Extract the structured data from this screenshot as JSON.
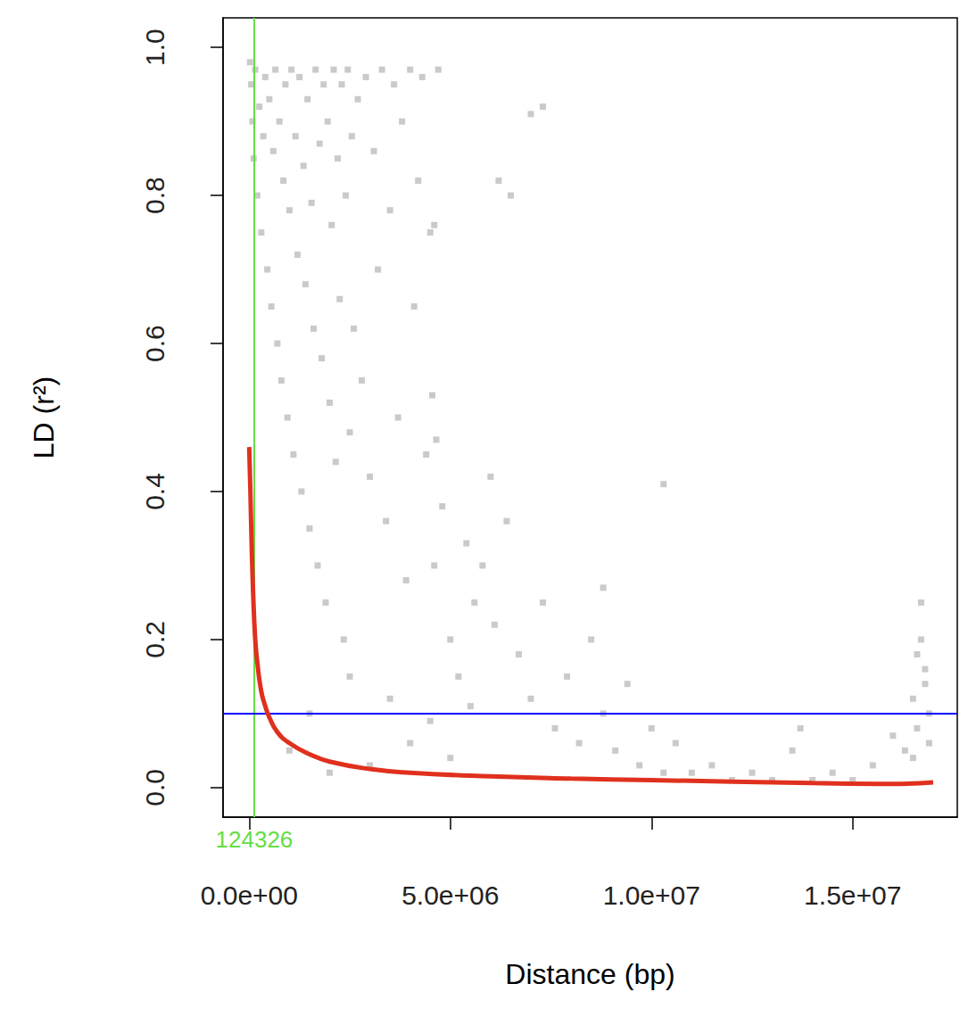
{
  "chart_data": {
    "type": "scatter",
    "x_label": "Distance (bp)",
    "y_label": "LD (r²)",
    "xlim": [
      -650000,
      17600000
    ],
    "ylim": [
      -0.04,
      1.04
    ],
    "xticks": [
      {
        "value": 0,
        "label": "0.0e+00"
      },
      {
        "value": 5000000,
        "label": "5.0e+06"
      },
      {
        "value": 10000000,
        "label": "1.0e+07"
      },
      {
        "value": 15000000,
        "label": "1.5e+07"
      }
    ],
    "yticks": [
      {
        "value": 0,
        "label": "0.0"
      },
      0.2,
      0.4,
      0.6,
      0.8,
      {
        "value": 1,
        "label": "1.0"
      }
    ],
    "grid": false,
    "series": [
      {
        "type": "scatter",
        "color": "#bdbdbd",
        "marker": "square",
        "x": [
          20000,
          50000,
          80000,
          110000,
          150000,
          200000,
          250000,
          300000,
          350000,
          400000,
          450000,
          500000,
          550000,
          600000,
          650000,
          700000,
          750000,
          800000,
          850000,
          900000,
          950000,
          1000000,
          1050000,
          1100000,
          1150000,
          1200000,
          1250000,
          1300000,
          1350000,
          1400000,
          1450000,
          1500000,
          1550000,
          1600000,
          1650000,
          1700000,
          1750000,
          1800000,
          1850000,
          1900000,
          1950000,
          2000000,
          2050000,
          2100000,
          2150000,
          2200000,
          2250000,
          2300000,
          2350000,
          2400000,
          2450000,
          2500000,
          2550000,
          2600000,
          2700000,
          2800000,
          2900000,
          3000000,
          3100000,
          3200000,
          3300000,
          3400000,
          3500000,
          3600000,
          3700000,
          3800000,
          3900000,
          4000000,
          4100000,
          4200000,
          4300000,
          4400000,
          4500000,
          4600000,
          4700000,
          4800000,
          5000000,
          5200000,
          5400000,
          5600000,
          6200000,
          6500000,
          7000000,
          7300000,
          4550000,
          4650000,
          4600000,
          10300000,
          8800000,
          6000000,
          5800000,
          6100000,
          6400000,
          6700000,
          7000000,
          7300000,
          7600000,
          7900000,
          8200000,
          8500000,
          8800000,
          9100000,
          9400000,
          9700000,
          10000000,
          10300000,
          10600000,
          11000000,
          11500000,
          12000000,
          1000000,
          1500000,
          2000000,
          2500000,
          3000000,
          3500000,
          4000000,
          4500000,
          5000000,
          5500000,
          12500000,
          13000000,
          13500000,
          13700000,
          14000000,
          14500000,
          15000000,
          15500000,
          16000000,
          16300000,
          16500000,
          16600000,
          16700000,
          16800000,
          16900000,
          16600000,
          16700000,
          16800000,
          16500000,
          16900000
        ],
        "values": [
          0.98,
          0.95,
          0.9,
          0.85,
          0.97,
          0.8,
          0.92,
          0.75,
          0.88,
          0.96,
          0.7,
          0.93,
          0.65,
          0.86,
          0.97,
          0.6,
          0.9,
          0.55,
          0.82,
          0.95,
          0.5,
          0.78,
          0.97,
          0.45,
          0.88,
          0.72,
          0.96,
          0.4,
          0.84,
          0.68,
          0.93,
          0.35,
          0.79,
          0.62,
          0.97,
          0.3,
          0.87,
          0.58,
          0.95,
          0.25,
          0.9,
          0.52,
          0.76,
          0.97,
          0.44,
          0.85,
          0.66,
          0.95,
          0.2,
          0.8,
          0.97,
          0.48,
          0.88,
          0.62,
          0.93,
          0.55,
          0.96,
          0.42,
          0.86,
          0.7,
          0.97,
          0.36,
          0.78,
          0.95,
          0.5,
          0.9,
          0.28,
          0.97,
          0.65,
          0.82,
          0.96,
          0.45,
          0.75,
          0.3,
          0.97,
          0.38,
          0.2,
          0.15,
          0.33,
          0.25,
          0.82,
          0.8,
          0.91,
          0.92,
          0.53,
          0.47,
          0.76,
          0.41,
          0.27,
          0.42,
          0.3,
          0.22,
          0.36,
          0.18,
          0.12,
          0.25,
          0.08,
          0.15,
          0.06,
          0.2,
          0.1,
          0.05,
          0.14,
          0.03,
          0.08,
          0.02,
          0.06,
          0.02,
          0.03,
          0.01,
          0.05,
          0.1,
          0.02,
          0.15,
          0.03,
          0.12,
          0.06,
          0.09,
          0.04,
          0.11,
          0.02,
          0.01,
          0.05,
          0.08,
          0.01,
          0.02,
          0.01,
          0.03,
          0.07,
          0.05,
          0.12,
          0.18,
          0.25,
          0.14,
          0.1,
          0.08,
          0.2,
          0.16,
          0.04,
          0.06
        ]
      },
      {
        "type": "line",
        "color": "#e0301e",
        "line_style": "solid",
        "x": [
          0,
          30000,
          60000,
          100000,
          150000,
          200000,
          300000,
          400000,
          500000,
          700000,
          1000000,
          1500000,
          2000000,
          3000000,
          4000000,
          6000000,
          8000000,
          10000000,
          12000000,
          14000000,
          16000000,
          17000000
        ],
        "values": [
          0.46,
          0.4,
          0.33,
          0.26,
          0.2,
          0.17,
          0.13,
          0.11,
          0.095,
          0.075,
          0.06,
          0.045,
          0.035,
          0.025,
          0.02,
          0.015,
          0.012,
          0.01,
          0.008,
          0.006,
          0.005,
          0.007
        ]
      }
    ],
    "vline": {
      "x": 124326,
      "label": "124326",
      "color": "#66dd44"
    },
    "hline": {
      "y": 0.1,
      "color": "#0000ff"
    }
  }
}
